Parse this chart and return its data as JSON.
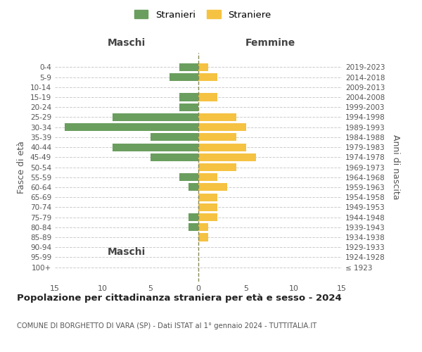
{
  "age_groups": [
    "100+",
    "95-99",
    "90-94",
    "85-89",
    "80-84",
    "75-79",
    "70-74",
    "65-69",
    "60-64",
    "55-59",
    "50-54",
    "45-49",
    "40-44",
    "35-39",
    "30-34",
    "25-29",
    "20-24",
    "15-19",
    "10-14",
    "5-9",
    "0-4"
  ],
  "birth_years": [
    "≤ 1923",
    "1924-1928",
    "1929-1933",
    "1934-1938",
    "1939-1943",
    "1944-1948",
    "1949-1953",
    "1954-1958",
    "1959-1963",
    "1964-1968",
    "1969-1973",
    "1974-1978",
    "1979-1983",
    "1984-1988",
    "1989-1993",
    "1994-1998",
    "1999-2003",
    "2004-2008",
    "2009-2013",
    "2014-2018",
    "2019-2023"
  ],
  "males": [
    0,
    0,
    0,
    0,
    1,
    1,
    0,
    0,
    1,
    2,
    0,
    5,
    9,
    5,
    14,
    9,
    2,
    2,
    0,
    3,
    2
  ],
  "females": [
    0,
    0,
    0,
    1,
    1,
    2,
    2,
    2,
    3,
    2,
    4,
    6,
    5,
    4,
    5,
    4,
    0,
    2,
    0,
    2,
    1
  ],
  "male_color": "#6a9e5e",
  "female_color": "#f5c242",
  "male_label": "Stranieri",
  "female_label": "Straniere",
  "title": "Popolazione per cittadinanza straniera per età e sesso - 2024",
  "subtitle": "COMUNE DI BORGHETTO DI VARA (SP) - Dati ISTAT al 1° gennaio 2024 - TUTTITALIA.IT",
  "ylabel_left": "Fasce di età",
  "ylabel_right": "Anni di nascita",
  "xlabel_left": "Maschi",
  "xlabel_top_right": "Femmine",
  "xlim": 15,
  "background_color": "#ffffff",
  "grid_color": "#cccccc"
}
